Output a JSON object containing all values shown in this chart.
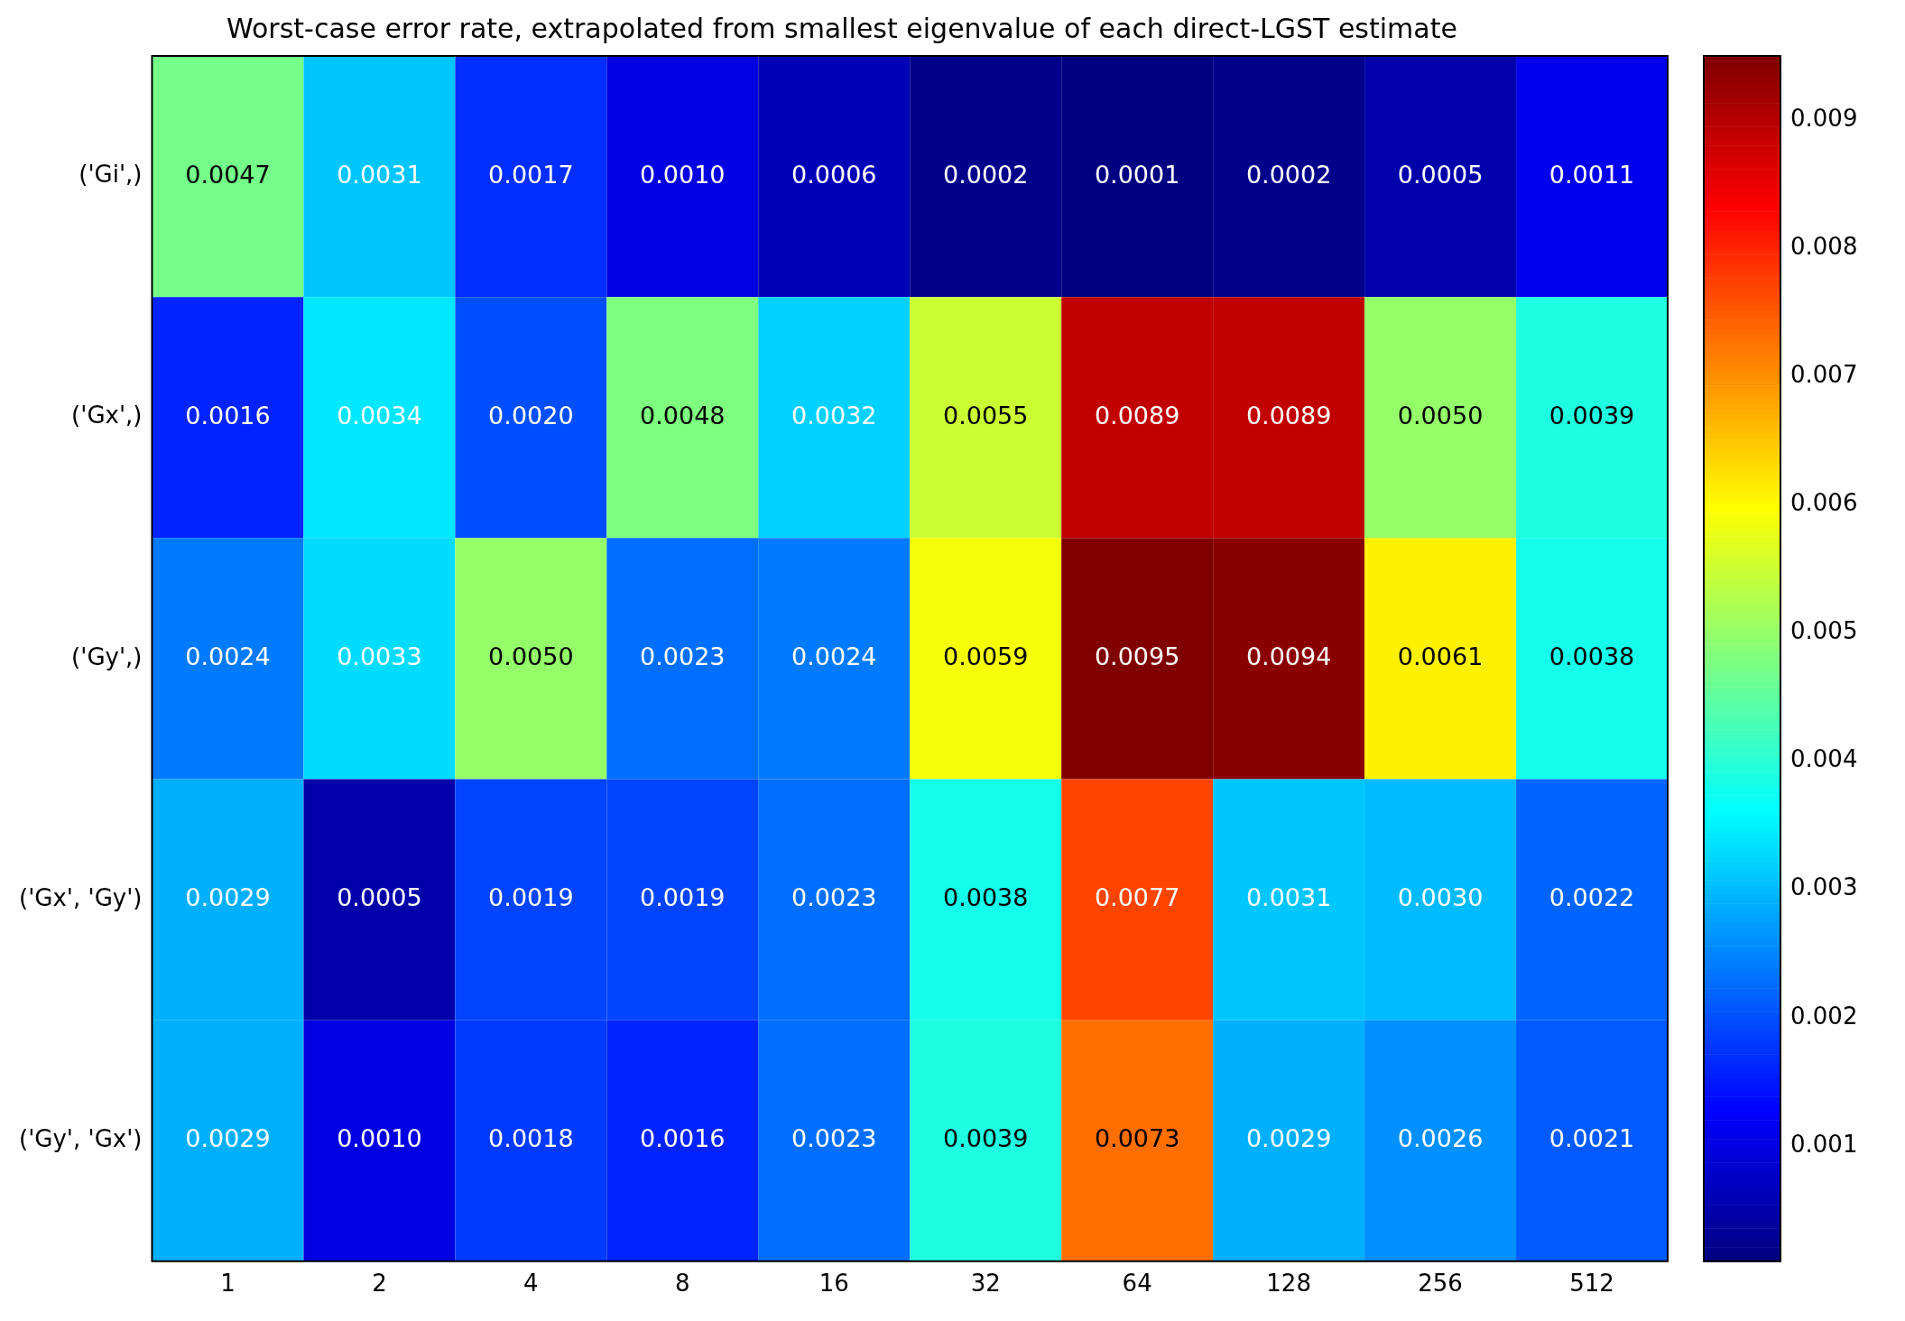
{
  "chart_data": {
    "type": "heatmap",
    "title": "Worst-case error rate, extrapolated from smallest eigenvalue of each direct-LGST estimate",
    "categories": [
      "1",
      "2",
      "4",
      "8",
      "16",
      "32",
      "64",
      "128",
      "256",
      "512"
    ],
    "y_categories": [
      "('Gi',)",
      "('Gx',)",
      "('Gy',)",
      "('Gx', 'Gy')",
      "('Gy', 'Gx')"
    ],
    "cells": [
      [
        0.0047,
        0.0031,
        0.0017,
        0.001,
        0.0006,
        0.0002,
        0.0001,
        0.0002,
        0.0005,
        0.0011
      ],
      [
        0.0016,
        0.0034,
        0.002,
        0.0048,
        0.0032,
        0.0055,
        0.0089,
        0.0089,
        0.005,
        0.0039
      ],
      [
        0.0024,
        0.0033,
        0.005,
        0.0023,
        0.0024,
        0.0059,
        0.0095,
        0.0094,
        0.0061,
        0.0038
      ],
      [
        0.0029,
        0.0005,
        0.0019,
        0.0019,
        0.0023,
        0.0038,
        0.0077,
        0.0031,
        0.003,
        0.0022
      ],
      [
        0.0029,
        0.001,
        0.0018,
        0.0016,
        0.0023,
        0.0039,
        0.0073,
        0.0029,
        0.0026,
        0.0021
      ]
    ],
    "cell_labels": [
      [
        "0.0047",
        "0.0031",
        "0.0017",
        "0.0010",
        "0.0006",
        "0.0002",
        "0.0001",
        "0.0002",
        "0.0005",
        "0.0011"
      ],
      [
        "0.0016",
        "0.0034",
        "0.0020",
        "0.0048",
        "0.0032",
        "0.0055",
        "0.0089",
        "0.0089",
        "0.0050",
        "0.0039"
      ],
      [
        "0.0024",
        "0.0033",
        "0.0050",
        "0.0023",
        "0.0024",
        "0.0059",
        "0.0095",
        "0.0094",
        "0.0061",
        "0.0038"
      ],
      [
        "0.0029",
        "0.0005",
        "0.0019",
        "0.0019",
        "0.0023",
        "0.0038",
        "0.0077",
        "0.0031",
        "0.0030",
        "0.0022"
      ],
      [
        "0.0029",
        "0.0010",
        "0.0018",
        "0.0016",
        "0.0023",
        "0.0039",
        "0.0073",
        "0.0029",
        "0.0026",
        "0.0021"
      ]
    ],
    "clim": [
      0.0001,
      0.0095
    ],
    "cticks": [
      0.001,
      0.002,
      0.003,
      0.004,
      0.005,
      0.006,
      0.007,
      0.008,
      0.009
    ]
  }
}
